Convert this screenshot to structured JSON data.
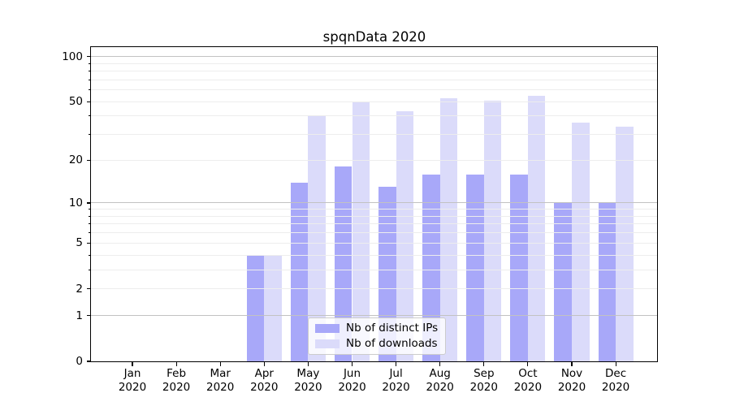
{
  "title": "spqnData 2020",
  "chart_data": {
    "type": "bar",
    "title": "spqnData 2020",
    "categories": [
      {
        "month": "Jan",
        "year": "2020"
      },
      {
        "month": "Feb",
        "year": "2020"
      },
      {
        "month": "Mar",
        "year": "2020"
      },
      {
        "month": "Apr",
        "year": "2020"
      },
      {
        "month": "May",
        "year": "2020"
      },
      {
        "month": "Jun",
        "year": "2020"
      },
      {
        "month": "Jul",
        "year": "2020"
      },
      {
        "month": "Aug",
        "year": "2020"
      },
      {
        "month": "Sep",
        "year": "2020"
      },
      {
        "month": "Oct",
        "year": "2020"
      },
      {
        "month": "Nov",
        "year": "2020"
      },
      {
        "month": "Dec",
        "year": "2020"
      }
    ],
    "series": [
      {
        "name": "Nb of distinct IPs",
        "color": "#a8a8f9",
        "values": [
          0,
          0,
          0,
          4,
          14,
          18,
          13,
          16,
          16,
          16,
          10,
          10
        ]
      },
      {
        "name": "Nb of downloads",
        "color": "#dbdbfa",
        "values": [
          0,
          0,
          0,
          4,
          40,
          50,
          43,
          53,
          51,
          55,
          36,
          34
        ]
      }
    ],
    "xlabel": "",
    "ylabel": "",
    "y_scale": "log1p",
    "ylim": [
      0,
      115
    ],
    "y_ticks": [
      0,
      1,
      2,
      5,
      10,
      20,
      50,
      100
    ],
    "y_minor_ticks": [
      3,
      4,
      6,
      7,
      8,
      9,
      30,
      40,
      60,
      70,
      80,
      90
    ],
    "gridlines": {
      "major": [
        1,
        10,
        100
      ],
      "minor": [
        2,
        3,
        4,
        5,
        6,
        7,
        8,
        9,
        20,
        30,
        40,
        50,
        60,
        70,
        80,
        90
      ]
    },
    "grid": true,
    "legend_position": "lower center",
    "colors": {
      "background": "#ffffff",
      "spine": "#000000",
      "grid_major": "#c2c2c2",
      "grid_minor": "#ededed",
      "tick": "#000000",
      "text": "#000000",
      "legend_border": "#cccccc"
    }
  }
}
